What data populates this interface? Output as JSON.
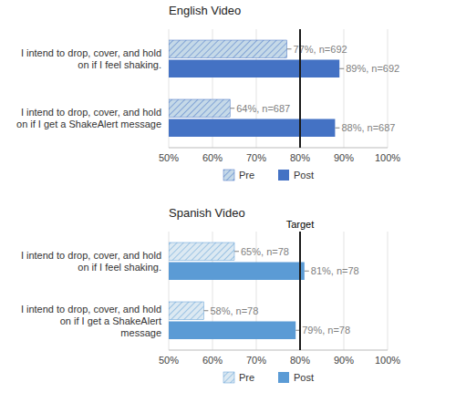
{
  "chart_data": [
    {
      "type": "bar",
      "orientation": "horizontal",
      "title": "English Video",
      "categories": [
        "I intend to drop, cover, and hold\non if I feel shaking.",
        "I intend to drop, cover, and hold\non if I get a ShakeAlert message"
      ],
      "series": [
        {
          "name": "Pre",
          "color": "#c5d9e8",
          "values": [
            77,
            64
          ],
          "value_labels": [
            "77%, n=692",
            "64%, n=687"
          ]
        },
        {
          "name": "Post",
          "color": "#4472c4",
          "values": [
            89,
            88
          ],
          "value_labels": [
            "89%, n=692",
            "88%, n=687"
          ]
        }
      ],
      "xlim": [
        50,
        100
      ],
      "xticks": [
        {
          "value": 50,
          "label": "50%"
        },
        {
          "value": 60,
          "label": "60%"
        },
        {
          "value": 70,
          "label": "70%"
        },
        {
          "value": 80,
          "label": "80%"
        },
        {
          "value": 90,
          "label": "90%"
        },
        {
          "value": 100,
          "label": "100%"
        }
      ],
      "reference_lines": [
        {
          "value": 80,
          "color": "#1a1a1a"
        }
      ],
      "grid": true,
      "legend": "bottom",
      "data_labels": true
    },
    {
      "type": "bar",
      "orientation": "horizontal",
      "title": "Spanish Video",
      "categories": [
        "I intend to drop, cover, and hold\non if I feel shaking.",
        "I intend to drop, cover, and hold\non if I get a ShakeAlert\nmessage"
      ],
      "series": [
        {
          "name": "Pre",
          "color": "#dce9f2",
          "values": [
            65,
            58
          ],
          "value_labels": [
            "65%, n=78",
            "58%, n=78"
          ]
        },
        {
          "name": "Post",
          "color": "#5b9bd5",
          "values": [
            81,
            79
          ],
          "value_labels": [
            "81%, n=78",
            "79%, n=78"
          ]
        }
      ],
      "xlim": [
        50,
        100
      ],
      "xticks": [
        {
          "value": 50,
          "label": "50%"
        },
        {
          "value": 60,
          "label": "60%"
        },
        {
          "value": 70,
          "label": "70%"
        },
        {
          "value": 80,
          "label": "80%"
        },
        {
          "value": 90,
          "label": "90%"
        },
        {
          "value": 100,
          "label": "100%"
        }
      ],
      "reference_lines": [
        {
          "value": 80,
          "color": "#1a1a1a",
          "label": "Target"
        }
      ],
      "grid": true,
      "legend": "bottom",
      "data_labels": true
    }
  ]
}
